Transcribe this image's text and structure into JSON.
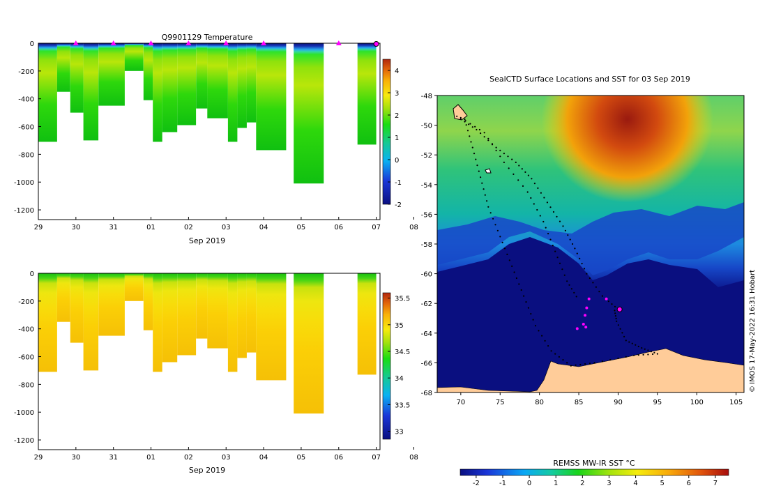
{
  "chart_data": [
    {
      "type": "heatmap",
      "title": "Q9901129  Temperature",
      "xlabel": "Sep 2019",
      "ylabel": "",
      "x_ticks": [
        "29",
        "30",
        "31",
        "01",
        "02",
        "03",
        "04",
        "05",
        "06",
        "07",
        "08"
      ],
      "y_ticks": [
        "0",
        "-200",
        "-400",
        "-600",
        "-800",
        "-1000",
        "-1200"
      ],
      "ylim": [
        -1270,
        0
      ],
      "colorbar_ticks": [
        "4",
        "3",
        "2",
        "1",
        "0",
        "-1",
        "-2"
      ],
      "colorbar_range": [
        -2,
        4.5
      ],
      "profile_markers_days": [
        30,
        31,
        32,
        33,
        34,
        35,
        37
      ],
      "surface_marker_day": 38,
      "profiles": [
        {
          "day": 29.0,
          "max_depth": 710
        },
        {
          "day": 29.5,
          "max_depth": 350
        },
        {
          "day": 29.85,
          "max_depth": 500
        },
        {
          "day": 30.2,
          "max_depth": 700
        },
        {
          "day": 30.6,
          "max_depth": 450
        },
        {
          "day": 31.3,
          "max_depth": 200
        },
        {
          "day": 31.8,
          "max_depth": 410
        },
        {
          "day": 32.05,
          "max_depth": 710
        },
        {
          "day": 32.3,
          "max_depth": 640
        },
        {
          "day": 32.7,
          "max_depth": 590
        },
        {
          "day": 33.2,
          "max_depth": 470
        },
        {
          "day": 33.5,
          "max_depth": 540
        },
        {
          "day": 34.05,
          "max_depth": 710
        },
        {
          "day": 34.3,
          "max_depth": 610
        },
        {
          "day": 34.55,
          "max_depth": 570
        },
        {
          "day": 34.8,
          "max_depth": 770
        },
        {
          "day": 35.8,
          "max_depth": 1010
        },
        {
          "day": 37.5,
          "max_depth": 730
        }
      ]
    },
    {
      "type": "heatmap",
      "title": "",
      "xlabel": "Sep 2019",
      "ylabel": "",
      "x_ticks": [
        "29",
        "30",
        "31",
        "01",
        "02",
        "03",
        "04",
        "05",
        "06",
        "07",
        "08"
      ],
      "y_ticks": [
        "0",
        "-200",
        "-400",
        "-600",
        "-800",
        "-1000",
        "-1200"
      ],
      "ylim": [
        -1270,
        0
      ],
      "colorbar_ticks": [
        "35.5",
        "35",
        "34.5",
        "34",
        "33.5",
        "33"
      ],
      "colorbar_range": [
        32.85,
        35.6
      ]
    },
    {
      "type": "heatmap",
      "title": "SealCTD Surface Locations and SST for 03 Sep 2019",
      "xlabel": "",
      "ylabel": "",
      "x_ticks": [
        "70",
        "75",
        "80",
        "85",
        "90",
        "95",
        "100",
        "105"
      ],
      "y_ticks": [
        "-48",
        "-50",
        "-52",
        "-54",
        "-56",
        "-58",
        "-60",
        "-62",
        "-64",
        "-66",
        "-68"
      ],
      "xlim": [
        67,
        106
      ],
      "ylim": [
        -68,
        -48
      ],
      "colorbar_label": "REMSS MW-IR SST °C",
      "colorbar_ticks": [
        "-2",
        "-1",
        "0",
        "1",
        "2",
        "3",
        "4",
        "5",
        "6",
        "7"
      ],
      "colorbar_range": [
        -2.6,
        7.5
      ],
      "recent_positions": [
        {
          "lon": 86.3,
          "lat": -61.7
        },
        {
          "lon": 86.0,
          "lat": -62.3
        },
        {
          "lon": 85.8,
          "lat": -62.8
        },
        {
          "lon": 85.6,
          "lat": -63.4
        },
        {
          "lon": 85.9,
          "lat": -63.6
        },
        {
          "lon": 84.8,
          "lat": -63.7
        },
        {
          "lon": 88.5,
          "lat": -61.7
        }
      ],
      "current_position": {
        "lon": 90.2,
        "lat": -62.4
      },
      "credit": "IMOS 17-May-2022 16:31 Hobart"
    }
  ],
  "colors": {
    "land": "#ffcc99",
    "marker": "#ff00ff",
    "track": "#000000"
  }
}
